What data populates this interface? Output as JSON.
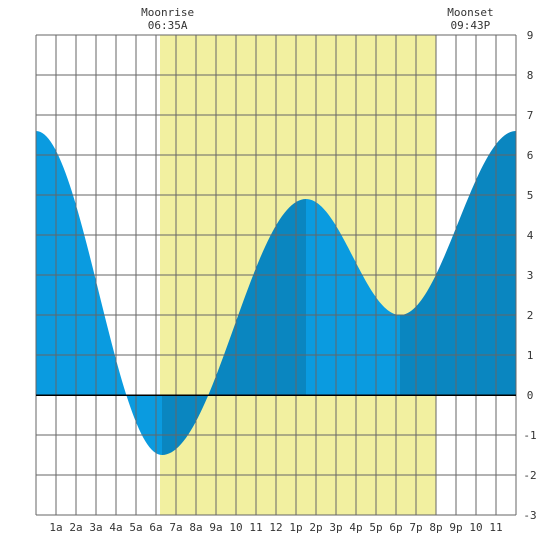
{
  "chart_data": {
    "type": "area",
    "title": "",
    "xlabel": "",
    "ylabel": "",
    "ylim": [
      -3,
      9
    ],
    "xlim": [
      0,
      24
    ],
    "grid": true,
    "x_tick_labels": [
      "1a",
      "2a",
      "3a",
      "4a",
      "5a",
      "6a",
      "7a",
      "8a",
      "9a",
      "10",
      "11",
      "12",
      "1p",
      "2p",
      "3p",
      "4p",
      "5p",
      "6p",
      "7p",
      "8p",
      "9p",
      "10",
      "11"
    ],
    "y_tick_labels": [
      "-3",
      "-2",
      "-1",
      "0",
      "1",
      "2",
      "3",
      "4",
      "5",
      "6",
      "7",
      "8",
      "9"
    ],
    "daylight_band": {
      "start_hour": 6.2,
      "end_hour": 20.0
    },
    "annotations": [
      {
        "label": "Moonrise",
        "time": "06:35A",
        "hour": 6.58
      },
      {
        "label": "Moonset",
        "time": "09:43P",
        "hour": 21.72
      }
    ],
    "tide_extremes": [
      {
        "hour": 0.0,
        "height": 6.6
      },
      {
        "hour": 6.3,
        "height": -1.5
      },
      {
        "hour": 13.5,
        "height": 4.9
      },
      {
        "hour": 18.2,
        "height": 2.0
      },
      {
        "hour": 24.0,
        "height": 6.6
      }
    ],
    "fill_segments": [
      {
        "from_hour": 0.0,
        "to_hour": 6.3,
        "color": "#0a9be0"
      },
      {
        "from_hour": 6.3,
        "to_hour": 13.5,
        "color": "#0a86c0"
      },
      {
        "from_hour": 13.5,
        "to_hour": 18.2,
        "color": "#0a9be0"
      },
      {
        "from_hour": 18.2,
        "to_hour": 24.0,
        "color": "#0a86c0"
      }
    ]
  },
  "colors": {
    "daylight": "#f2f0a0",
    "grid": "#666666",
    "axis": "#000000",
    "rising": "#0a86c0",
    "falling": "#0a9be0"
  }
}
